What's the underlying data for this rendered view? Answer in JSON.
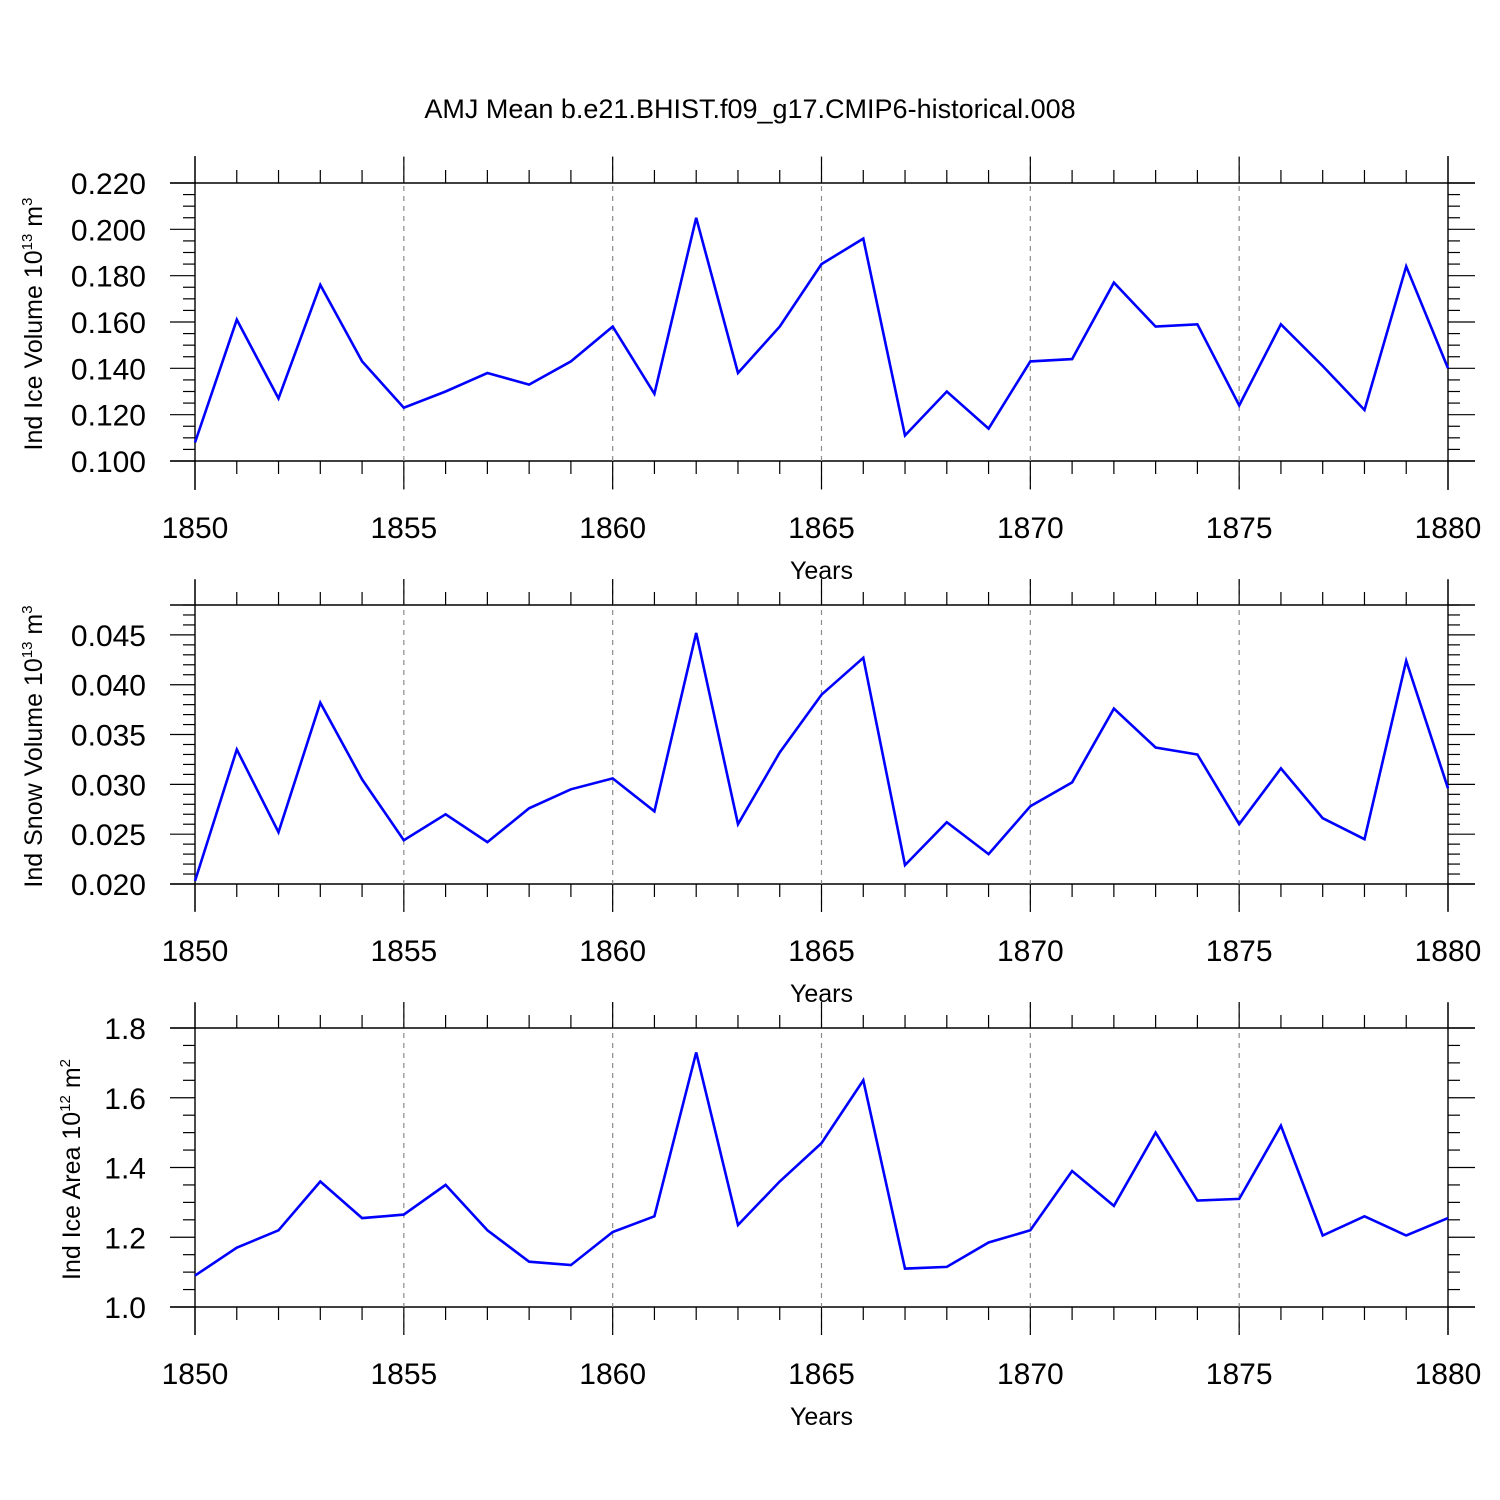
{
  "title": "AMJ Mean b.e21.BHIST.f09_g17.CMIP6-historical.008",
  "colors": {
    "series": "#0000ff",
    "axis": "#000000",
    "grid": "#8c8c8c"
  },
  "chart_data": [
    {
      "type": "line",
      "ylabel": "Ind Ice Volume 10",
      "ylabel_sup": "13",
      "ylabel_unit": " m",
      "ylabel_unit_sup": "3",
      "xlabel": "Years",
      "xlim": [
        1850,
        1880
      ],
      "ylim": [
        0.1,
        0.22
      ],
      "x_ticks": [
        1850,
        1855,
        1860,
        1865,
        1870,
        1875,
        1880
      ],
      "y_ticks": [
        0.1,
        0.12,
        0.14,
        0.16,
        0.18,
        0.2,
        0.22
      ],
      "y_tick_labels": [
        "0.100",
        "0.120",
        "0.140",
        "0.160",
        "0.180",
        "0.200",
        "0.220"
      ],
      "y_minor_step": 0.005,
      "grid": "vertical dashed at major x ticks",
      "x": [
        1850,
        1851,
        1852,
        1853,
        1854,
        1855,
        1856,
        1857,
        1858,
        1859,
        1860,
        1861,
        1862,
        1863,
        1864,
        1865,
        1866,
        1867,
        1868,
        1869,
        1870,
        1871,
        1872,
        1873,
        1874,
        1875,
        1876,
        1877,
        1878,
        1879,
        1880
      ],
      "values": [
        0.108,
        0.161,
        0.127,
        0.176,
        0.143,
        0.123,
        0.13,
        0.138,
        0.133,
        0.143,
        0.158,
        0.129,
        0.205,
        0.138,
        0.158,
        0.185,
        0.196,
        0.111,
        0.13,
        0.114,
        0.143,
        0.144,
        0.177,
        0.158,
        0.159,
        0.124,
        0.159,
        0.141,
        0.122,
        0.184,
        0.14
      ]
    },
    {
      "type": "line",
      "ylabel": "Ind Snow Volume 10",
      "ylabel_sup": "13",
      "ylabel_unit": " m",
      "ylabel_unit_sup": "3",
      "xlabel": "Years",
      "xlim": [
        1850,
        1880
      ],
      "ylim": [
        0.02,
        0.048
      ],
      "x_ticks": [
        1850,
        1855,
        1860,
        1865,
        1870,
        1875,
        1880
      ],
      "y_ticks": [
        0.02,
        0.025,
        0.03,
        0.035,
        0.04,
        0.045
      ],
      "y_tick_labels": [
        "0.020",
        "0.025",
        "0.030",
        "0.035",
        "0.040",
        "0.045"
      ],
      "y_minor_step": 0.001,
      "grid": "vertical dashed at major x ticks",
      "x": [
        1850,
        1851,
        1852,
        1853,
        1854,
        1855,
        1856,
        1857,
        1858,
        1859,
        1860,
        1861,
        1862,
        1863,
        1864,
        1865,
        1866,
        1867,
        1868,
        1869,
        1870,
        1871,
        1872,
        1873,
        1874,
        1875,
        1876,
        1877,
        1878,
        1879,
        1880
      ],
      "values": [
        0.0203,
        0.0335,
        0.0252,
        0.0382,
        0.0305,
        0.0244,
        0.027,
        0.0242,
        0.0276,
        0.0295,
        0.0306,
        0.0273,
        0.0452,
        0.026,
        0.0332,
        0.039,
        0.0427,
        0.0219,
        0.0262,
        0.023,
        0.0278,
        0.0302,
        0.0376,
        0.0337,
        0.033,
        0.026,
        0.0316,
        0.0266,
        0.0245,
        0.0424,
        0.0296
      ]
    },
    {
      "type": "line",
      "ylabel": "Ind Ice Area 10",
      "ylabel_sup": "12",
      "ylabel_unit": " m",
      "ylabel_unit_sup": "2",
      "xlabel": "Years",
      "xlim": [
        1850,
        1880
      ],
      "ylim": [
        1.0,
        1.8
      ],
      "x_ticks": [
        1850,
        1855,
        1860,
        1865,
        1870,
        1875,
        1880
      ],
      "y_ticks": [
        1.0,
        1.2,
        1.4,
        1.6,
        1.8
      ],
      "y_tick_labels": [
        "1.0",
        "1.2",
        "1.4",
        "1.6",
        "1.8"
      ],
      "y_minor_step": 0.05,
      "grid": "vertical dashed at major x ticks",
      "x": [
        1850,
        1851,
        1852,
        1853,
        1854,
        1855,
        1856,
        1857,
        1858,
        1859,
        1860,
        1861,
        1862,
        1863,
        1864,
        1865,
        1866,
        1867,
        1868,
        1869,
        1870,
        1871,
        1872,
        1873,
        1874,
        1875,
        1876,
        1877,
        1878,
        1879,
        1880
      ],
      "values": [
        1.09,
        1.17,
        1.22,
        1.36,
        1.255,
        1.265,
        1.35,
        1.22,
        1.13,
        1.12,
        1.215,
        1.26,
        1.73,
        1.235,
        1.36,
        1.47,
        1.65,
        1.11,
        1.115,
        1.185,
        1.22,
        1.39,
        1.29,
        1.5,
        1.305,
        1.31,
        1.52,
        1.205,
        1.26,
        1.205,
        1.255
      ]
    }
  ]
}
